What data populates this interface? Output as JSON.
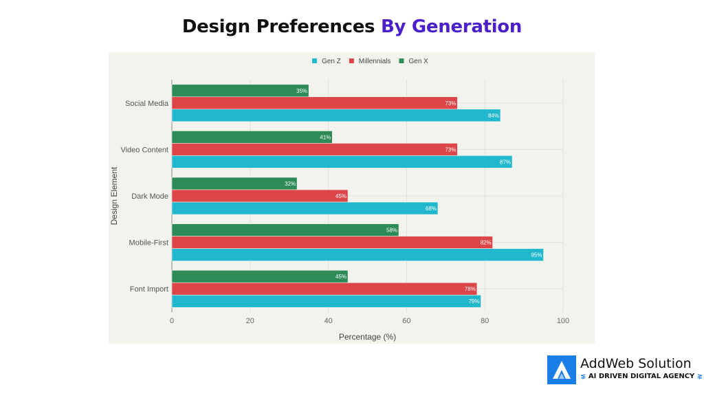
{
  "header": {
    "title_part1": "Design Preferences ",
    "title_part2": "By Generation",
    "accent": "#4b1fc9"
  },
  "chart_data": {
    "type": "bar",
    "orientation": "horizontal",
    "categories": [
      "Social Media",
      "Video Content",
      "Dark Mode",
      "Mobile-First",
      "Font Import"
    ],
    "series": [
      {
        "name": "Gen Z",
        "color": "#21b8ce",
        "values": [
          84,
          87,
          68,
          95,
          79
        ],
        "labels": [
          "84%",
          "87%",
          "68%",
          "95%",
          "79%"
        ]
      },
      {
        "name": "Millennials",
        "color": "#dc4648",
        "values": [
          73,
          73,
          45,
          82,
          78
        ],
        "labels": [
          "73%",
          "73%",
          "45%",
          "82%",
          "78%"
        ]
      },
      {
        "name": "Gen X",
        "color": "#2e8a57",
        "values": [
          35,
          41,
          32,
          58,
          45
        ],
        "labels": [
          "35%",
          "41%",
          "32%",
          "58%",
          "45%"
        ]
      }
    ],
    "xlabel": "Percentage (%)",
    "ylabel": "Design Element",
    "xlim": [
      0,
      100
    ],
    "xticks": [
      "0",
      "20",
      "40",
      "60",
      "80",
      "100"
    ],
    "grid": true,
    "legend": "top-center",
    "background": "#f3f3ee"
  },
  "logo": {
    "name": "AddWeb Solution",
    "tagline": "AI DRIVEN DIGITAL AGENCY",
    "color": "#1a7ee8"
  }
}
